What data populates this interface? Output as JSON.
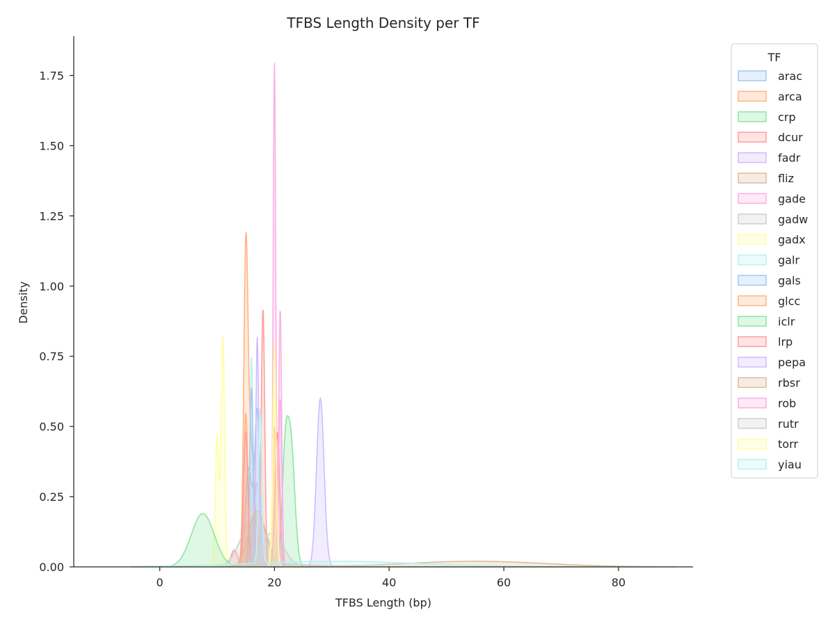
{
  "chart_data": {
    "type": "area",
    "subtype": "kde-density",
    "title": "TFBS Length Density per TF",
    "xlabel": "TFBS Length (bp)",
    "ylabel": "Density",
    "xlim": [
      -15,
      93
    ],
    "ylim": [
      0,
      1.89
    ],
    "xticks": [
      0,
      20,
      40,
      60,
      80
    ],
    "yticks": [
      0.0,
      0.25,
      0.5,
      0.75,
      1.0,
      1.25,
      1.5,
      1.75
    ],
    "ytick_format": "2dp",
    "grid": false,
    "legend": {
      "title": "TF",
      "placement": "outside-top-right"
    },
    "series": [
      {
        "name": "arac",
        "color": "#a1c9f4",
        "peaks": [
          [
            15.5,
            0.35,
            0.6
          ],
          [
            17.0,
            0.55,
            0.45
          ]
        ]
      },
      {
        "name": "arca",
        "color": "#ffb482",
        "peaks": [
          [
            15.0,
            0.95,
            0.35
          ],
          [
            15.8,
            0.45,
            0.7
          ]
        ]
      },
      {
        "name": "crp",
        "color": "#8de5a1",
        "peaks": [
          [
            22.8,
            0.46,
            0.7
          ],
          [
            21.8,
            0.3,
            0.5
          ]
        ]
      },
      {
        "name": "dcur",
        "color": "#ff9f9b",
        "peaks": [
          [
            18.0,
            0.92,
            0.3
          ],
          [
            20.0,
            0.5,
            0.35
          ],
          [
            13.0,
            0.06,
            0.6
          ]
        ]
      },
      {
        "name": "fadr",
        "color": "#d0bbff",
        "peaks": [
          [
            28.0,
            0.6,
            0.65
          ],
          [
            17.0,
            0.82,
            0.25
          ]
        ]
      },
      {
        "name": "fliz",
        "color": "#debb9b",
        "peaks": [
          [
            55.0,
            0.02,
            12.0
          ],
          [
            20.0,
            0.01,
            5.0
          ]
        ]
      },
      {
        "name": "gade",
        "color": "#fab0e4",
        "peaks": [
          [
            20.0,
            1.8,
            0.22
          ],
          [
            21.0,
            0.92,
            0.25
          ]
        ]
      },
      {
        "name": "gadw",
        "color": "#cfcfcf",
        "peaks": [
          [
            16.5,
            0.18,
            2.2
          ]
        ]
      },
      {
        "name": "gadx",
        "color": "#fffea3",
        "peaks": [
          [
            11.0,
            0.82,
            0.3
          ],
          [
            10.0,
            0.47,
            0.3
          ],
          [
            20.0,
            0.8,
            0.28
          ]
        ]
      },
      {
        "name": "galr",
        "color": "#b9f2f0",
        "peaks": [
          [
            16.0,
            0.75,
            0.25
          ]
        ]
      },
      {
        "name": "gals",
        "color": "#a1c9f4",
        "peaks": [
          [
            16.0,
            0.64,
            0.3
          ]
        ]
      },
      {
        "name": "glcc",
        "color": "#ffb482",
        "peaks": [
          [
            15.0,
            0.55,
            0.35
          ]
        ]
      },
      {
        "name": "iclr",
        "color": "#8de5a1",
        "peaks": [
          [
            7.5,
            0.19,
            2.0
          ]
        ]
      },
      {
        "name": "lrp",
        "color": "#ff9f9b",
        "peaks": [
          [
            15.0,
            0.48,
            0.4
          ],
          [
            20.5,
            0.48,
            0.4
          ]
        ]
      },
      {
        "name": "pepa",
        "color": "#d0bbff",
        "peaks": [
          [
            17.0,
            0.3,
            0.6
          ]
        ]
      },
      {
        "name": "rbsr",
        "color": "#debb9b",
        "peaks": [
          [
            17.0,
            0.2,
            1.5
          ]
        ]
      },
      {
        "name": "rob",
        "color": "#fab0e4",
        "peaks": [
          [
            21.0,
            0.6,
            0.3
          ]
        ]
      },
      {
        "name": "rutr",
        "color": "#cfcfcf",
        "peaks": [
          [
            19.5,
            0.12,
            2.0
          ]
        ]
      },
      {
        "name": "torr",
        "color": "#fffea3",
        "peaks": [
          [
            20.0,
            0.6,
            0.35
          ]
        ]
      },
      {
        "name": "yiau",
        "color": "#b9f2f0",
        "peaks": [
          [
            30.0,
            0.02,
            15.0
          ],
          [
            17.5,
            0.55,
            0.3
          ]
        ]
      }
    ]
  }
}
